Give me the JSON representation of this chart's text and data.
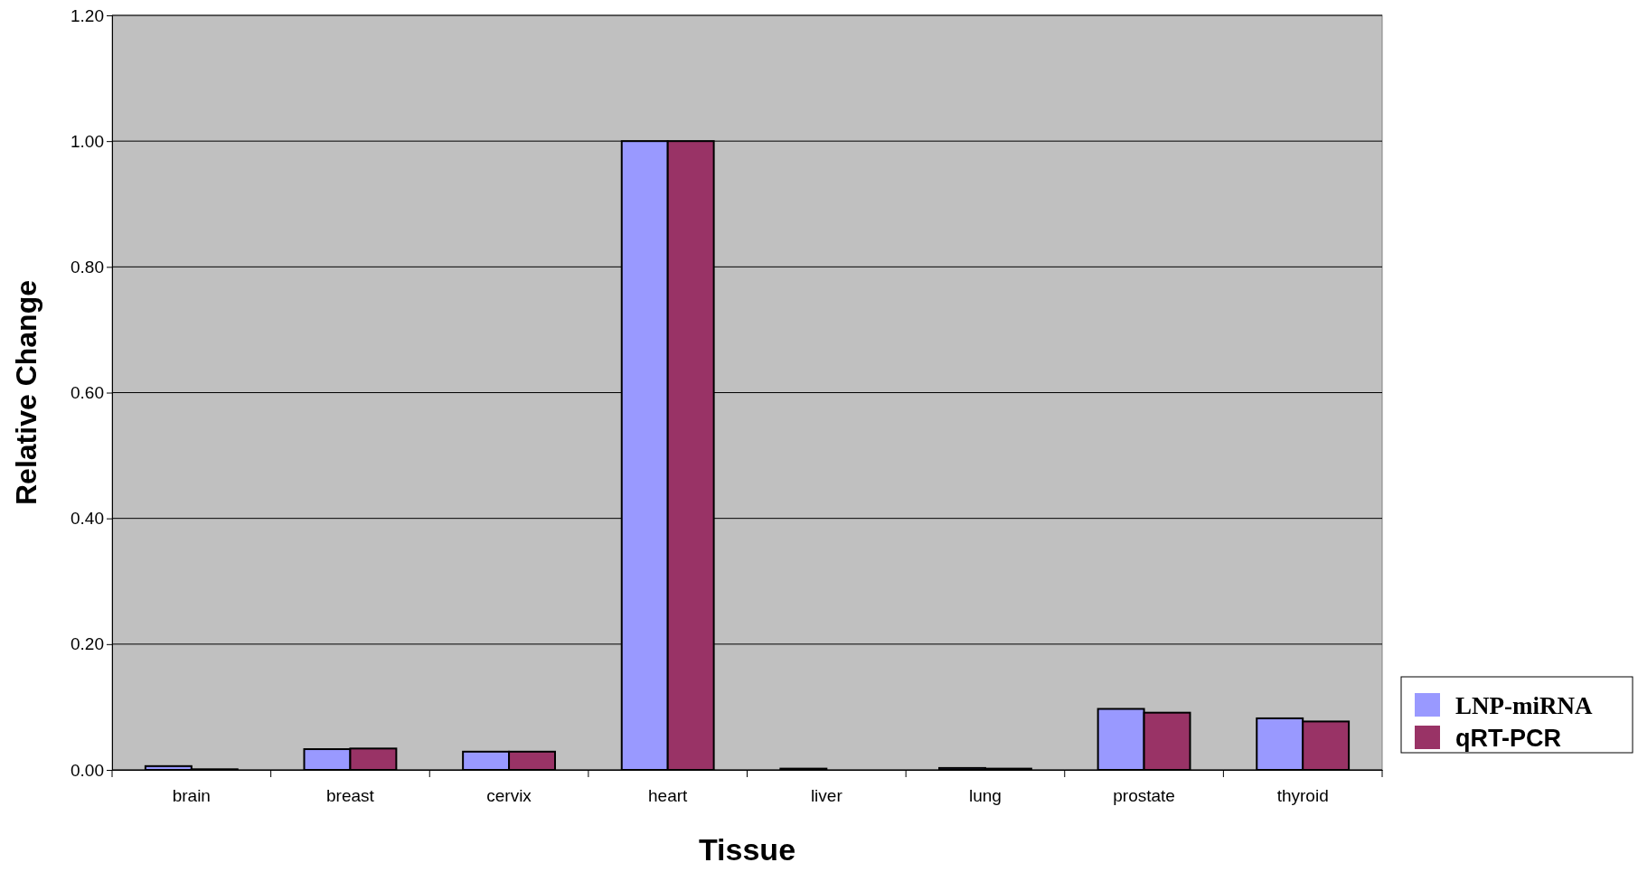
{
  "chart_data": {
    "type": "bar",
    "xlabel": "Tissue",
    "ylabel": "Relative Change",
    "categories": [
      "brain",
      "breast",
      "cervix",
      "heart",
      "liver",
      "lung",
      "prostate",
      "thyroid"
    ],
    "series": [
      {
        "name": "LNP-miRNA",
        "color": "#9999ff",
        "values": [
          0.006,
          0.033,
          0.029,
          1.0,
          0.002,
          0.003,
          0.097,
          0.082
        ]
      },
      {
        "name": "qRT-PCR",
        "color": "#993366",
        "values": [
          0.001,
          0.034,
          0.029,
          1.0,
          0,
          0.002,
          0.091,
          0.077
        ]
      }
    ],
    "ylim": [
      0,
      1.2
    ],
    "yticks": [
      {
        "value": 0,
        "label": "0.00"
      },
      {
        "value": 0.2,
        "label": "0.20"
      },
      {
        "value": 0.4,
        "label": "0.40"
      },
      {
        "value": 0.6,
        "label": "0.60"
      },
      {
        "value": 0.8,
        "label": "0.80"
      },
      {
        "value": 1.0,
        "label": "1.00"
      },
      {
        "value": 1.2,
        "label": "1.20"
      }
    ],
    "grid": "y",
    "legend": "right"
  }
}
